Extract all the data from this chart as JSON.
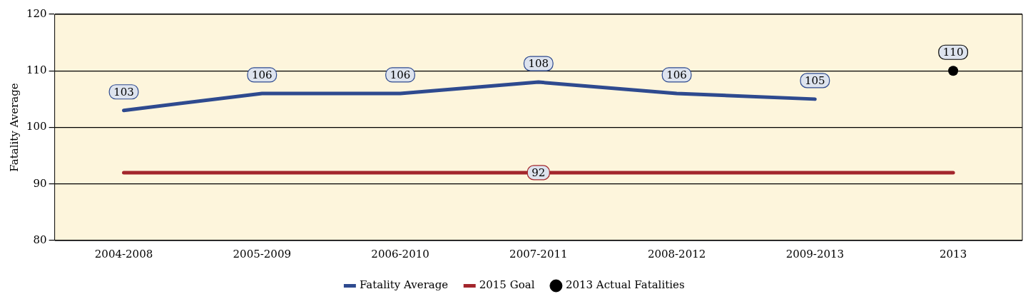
{
  "chart_data": {
    "type": "line",
    "ylabel": "Fatality Average",
    "categories": [
      "2004-2008",
      "2005-2009",
      "2006-2010",
      "2007-2011",
      "2008-2012",
      "2009-2013",
      "2013"
    ],
    "series": [
      {
        "name": "Fatality Average",
        "color": "#2e4a8f",
        "marker": "none",
        "values": [
          103,
          106,
          106,
          108,
          106,
          105,
          null
        ],
        "value_labels": [
          "103",
          "106",
          "106",
          "108",
          "106",
          "105",
          null
        ]
      },
      {
        "name": "2015 Goal",
        "color": "#a3262c",
        "marker": "none",
        "values": [
          92,
          92,
          92,
          92,
          92,
          92,
          92
        ],
        "value_labels": [
          null,
          null,
          null,
          "92",
          null,
          null,
          null
        ]
      },
      {
        "name": "2013 Actual Fatalities",
        "type": "scatter",
        "color": "#000000",
        "marker": "circle",
        "values": [
          null,
          null,
          null,
          null,
          null,
          null,
          110
        ],
        "value_labels": [
          null,
          null,
          null,
          null,
          null,
          null,
          "110"
        ]
      }
    ],
    "ylim": [
      80,
      120
    ],
    "yticks": [
      80,
      90,
      100,
      110,
      120
    ],
    "grid": "y",
    "legend": "bottom"
  }
}
